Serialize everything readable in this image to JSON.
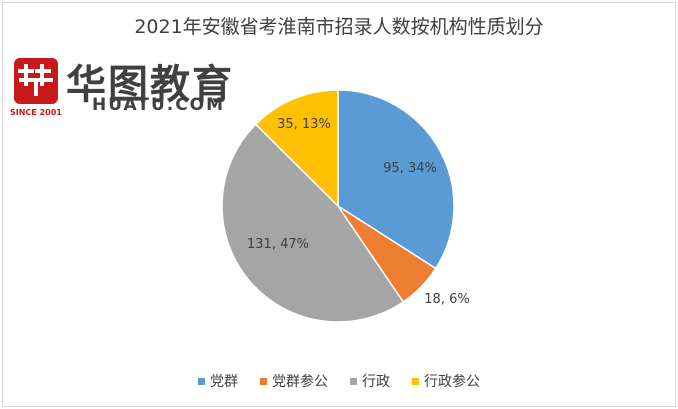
{
  "logo": {
    "cn": "华图教育",
    "en": "HUATU.COM",
    "since": "SINCE 2001"
  },
  "chart_data": {
    "type": "pie",
    "title": "2021年安徽省考淮南市招录人数按机构性质划分",
    "legend_position": "bottom",
    "slices": [
      {
        "name": "党群",
        "value": 95,
        "percent": 34,
        "label": "95, 34%",
        "color": "#5b9bd5"
      },
      {
        "name": "党群参公",
        "value": 18,
        "percent": 6,
        "label": "18, 6%",
        "color": "#ed7d31"
      },
      {
        "name": "行政",
        "value": 131,
        "percent": 47,
        "label": "131, 47%",
        "color": "#a5a5a5"
      },
      {
        "name": "行政参公",
        "value": 35,
        "percent": 13,
        "label": "35, 13%",
        "color": "#ffc000"
      }
    ]
  }
}
